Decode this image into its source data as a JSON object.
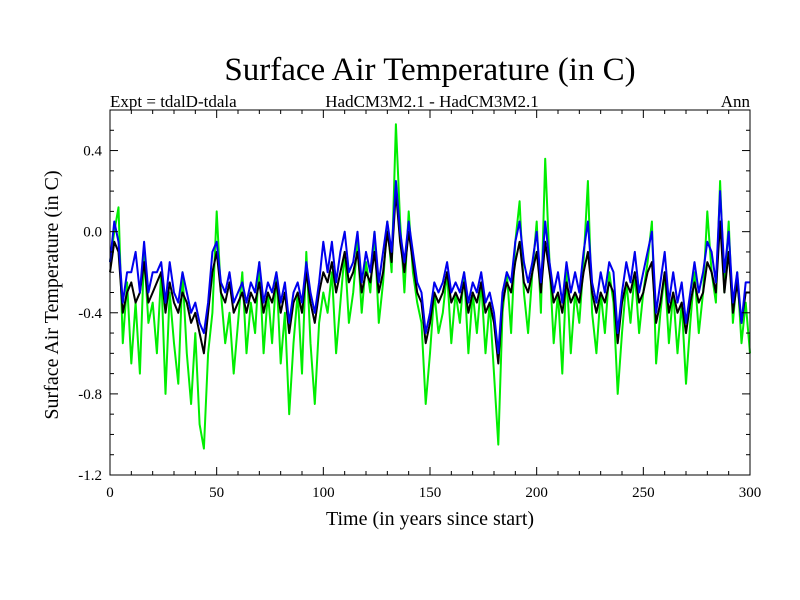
{
  "chart_data": {
    "type": "line",
    "title": "Surface Air Temperature (in C)",
    "subtitle_left": "Expt = tdalD-tdala",
    "subtitle_center": "HadCM3M2.1 - HadCM3M2.1",
    "subtitle_right": "Ann",
    "xlabel": "Time (in years since start)",
    "ylabel": "Surface Air Temperature (in C)",
    "xlim": [
      0,
      300
    ],
    "ylim": [
      -1.2,
      0.6
    ],
    "xticks": [
      0,
      50,
      100,
      150,
      200,
      250,
      300
    ],
    "xtick_labels": [
      "0",
      "50",
      "100",
      "150",
      "200",
      "250",
      "300"
    ],
    "yticks": [
      -1.2,
      -0.8,
      -0.4,
      0.0,
      0.4
    ],
    "ytick_labels": [
      "-1.2",
      "-0.8",
      "-0.4",
      "0.0",
      "0.4"
    ],
    "grid": false,
    "series": [
      {
        "name": "green",
        "color": "#00ee00",
        "x": [
          0,
          2,
          4,
          6,
          8,
          10,
          12,
          14,
          16,
          18,
          20,
          22,
          24,
          26,
          28,
          30,
          32,
          34,
          36,
          38,
          40,
          42,
          44,
          46,
          48,
          50,
          52,
          54,
          56,
          58,
          60,
          62,
          64,
          66,
          68,
          70,
          72,
          74,
          76,
          78,
          80,
          82,
          84,
          86,
          88,
          90,
          92,
          94,
          96,
          98,
          100,
          102,
          104,
          106,
          108,
          110,
          112,
          114,
          116,
          118,
          120,
          122,
          124,
          126,
          128,
          130,
          132,
          134,
          136,
          138,
          140,
          142,
          144,
          146,
          148,
          150,
          152,
          154,
          156,
          158,
          160,
          162,
          164,
          166,
          168,
          170,
          172,
          174,
          176,
          178,
          180,
          182,
          184,
          186,
          188,
          190,
          192,
          194,
          196,
          198,
          200,
          202,
          204,
          206,
          208,
          210,
          212,
          214,
          216,
          218,
          220,
          222,
          224,
          226,
          228,
          230,
          232,
          234,
          236,
          238,
          240,
          242,
          244,
          246,
          248,
          250,
          252,
          254,
          256,
          258,
          260,
          262,
          264,
          266,
          268,
          270,
          272,
          274,
          276,
          278,
          280,
          282,
          284,
          286,
          288,
          290,
          292,
          294,
          296,
          298,
          300
        ],
        "values": [
          -0.15,
          0.0,
          0.12,
          -0.55,
          -0.25,
          -0.65,
          -0.35,
          -0.7,
          -0.1,
          -0.45,
          -0.35,
          -0.6,
          -0.2,
          -0.8,
          -0.3,
          -0.55,
          -0.75,
          -0.2,
          -0.6,
          -0.85,
          -0.5,
          -0.95,
          -1.07,
          -0.6,
          -0.4,
          0.1,
          -0.3,
          -0.55,
          -0.4,
          -0.7,
          -0.45,
          -0.2,
          -0.6,
          -0.35,
          -0.5,
          -0.15,
          -0.6,
          -0.3,
          -0.55,
          -0.2,
          -0.65,
          -0.4,
          -0.9,
          -0.55,
          -0.3,
          -0.7,
          -0.1,
          -0.55,
          -0.85,
          -0.45,
          -0.3,
          -0.4,
          -0.2,
          -0.6,
          -0.35,
          -0.1,
          -0.45,
          -0.3,
          -0.05,
          -0.4,
          -0.15,
          -0.3,
          0.0,
          -0.45,
          -0.25,
          0.05,
          -0.2,
          0.53,
          0.05,
          -0.3,
          0.1,
          -0.2,
          -0.35,
          -0.45,
          -0.85,
          -0.6,
          -0.3,
          -0.5,
          -0.4,
          -0.2,
          -0.55,
          -0.3,
          -0.45,
          -0.2,
          -0.6,
          -0.3,
          -0.5,
          -0.25,
          -0.6,
          -0.35,
          -0.7,
          -1.05,
          -0.4,
          -0.2,
          -0.5,
          -0.05,
          0.15,
          -0.3,
          -0.5,
          -0.2,
          0.05,
          -0.4,
          0.36,
          -0.15,
          -0.55,
          -0.3,
          -0.7,
          -0.2,
          -0.6,
          -0.3,
          -0.45,
          -0.15,
          0.25,
          -0.4,
          -0.6,
          -0.3,
          -0.5,
          -0.2,
          -0.35,
          -0.8,
          -0.5,
          -0.25,
          -0.45,
          -0.2,
          -0.5,
          -0.3,
          -0.15,
          0.05,
          -0.65,
          -0.4,
          -0.2,
          -0.55,
          -0.3,
          -0.6,
          -0.35,
          -0.75,
          -0.45,
          -0.2,
          -0.5,
          -0.3,
          0.1,
          -0.2,
          -0.35,
          0.25,
          -0.3,
          0.05,
          -0.45,
          -0.2,
          -0.55,
          -0.35,
          -0.6
        ]
      },
      {
        "name": "black",
        "color": "#000000",
        "x": [
          0,
          2,
          4,
          6,
          8,
          10,
          12,
          14,
          16,
          18,
          20,
          22,
          24,
          26,
          28,
          30,
          32,
          34,
          36,
          38,
          40,
          42,
          44,
          46,
          48,
          50,
          52,
          54,
          56,
          58,
          60,
          62,
          64,
          66,
          68,
          70,
          72,
          74,
          76,
          78,
          80,
          82,
          84,
          86,
          88,
          90,
          92,
          94,
          96,
          98,
          100,
          102,
          104,
          106,
          108,
          110,
          112,
          114,
          116,
          118,
          120,
          122,
          124,
          126,
          128,
          130,
          132,
          134,
          136,
          138,
          140,
          142,
          144,
          146,
          148,
          150,
          152,
          154,
          156,
          158,
          160,
          162,
          164,
          166,
          168,
          170,
          172,
          174,
          176,
          178,
          180,
          182,
          184,
          186,
          188,
          190,
          192,
          194,
          196,
          198,
          200,
          202,
          204,
          206,
          208,
          210,
          212,
          214,
          216,
          218,
          220,
          222,
          224,
          226,
          228,
          230,
          232,
          234,
          236,
          238,
          240,
          242,
          244,
          246,
          248,
          250,
          252,
          254,
          256,
          258,
          260,
          262,
          264,
          266,
          268,
          270,
          272,
          274,
          276,
          278,
          280,
          282,
          284,
          286,
          288,
          290,
          292,
          294,
          296,
          298,
          300
        ],
        "values": [
          -0.2,
          -0.05,
          -0.1,
          -0.4,
          -0.3,
          -0.25,
          -0.35,
          -0.3,
          -0.15,
          -0.35,
          -0.3,
          -0.25,
          -0.2,
          -0.4,
          -0.25,
          -0.35,
          -0.4,
          -0.3,
          -0.35,
          -0.45,
          -0.4,
          -0.5,
          -0.6,
          -0.4,
          -0.2,
          -0.1,
          -0.3,
          -0.35,
          -0.25,
          -0.4,
          -0.35,
          -0.3,
          -0.4,
          -0.3,
          -0.35,
          -0.25,
          -0.4,
          -0.3,
          -0.35,
          -0.25,
          -0.4,
          -0.3,
          -0.5,
          -0.35,
          -0.3,
          -0.4,
          -0.2,
          -0.35,
          -0.45,
          -0.3,
          -0.2,
          -0.25,
          -0.15,
          -0.3,
          -0.2,
          -0.1,
          -0.25,
          -0.2,
          -0.1,
          -0.3,
          -0.2,
          -0.25,
          -0.1,
          -0.3,
          -0.2,
          0.0,
          -0.15,
          0.2,
          -0.05,
          -0.2,
          0.0,
          -0.15,
          -0.3,
          -0.35,
          -0.55,
          -0.45,
          -0.3,
          -0.35,
          -0.3,
          -0.2,
          -0.35,
          -0.3,
          -0.35,
          -0.25,
          -0.4,
          -0.3,
          -0.35,
          -0.25,
          -0.4,
          -0.35,
          -0.45,
          -0.65,
          -0.35,
          -0.25,
          -0.3,
          -0.15,
          -0.05,
          -0.25,
          -0.3,
          -0.2,
          -0.1,
          -0.3,
          -0.05,
          -0.2,
          -0.35,
          -0.3,
          -0.4,
          -0.25,
          -0.35,
          -0.3,
          -0.35,
          -0.2,
          -0.1,
          -0.3,
          -0.4,
          -0.3,
          -0.35,
          -0.25,
          -0.3,
          -0.55,
          -0.35,
          -0.25,
          -0.3,
          -0.2,
          -0.35,
          -0.3,
          -0.2,
          -0.15,
          -0.45,
          -0.35,
          -0.2,
          -0.4,
          -0.3,
          -0.4,
          -0.35,
          -0.5,
          -0.35,
          -0.25,
          -0.35,
          -0.3,
          -0.15,
          -0.2,
          -0.3,
          0.05,
          -0.3,
          -0.1,
          -0.4,
          -0.25,
          -0.45,
          -0.3,
          -0.3
        ]
      },
      {
        "name": "blue",
        "color": "#0000ee",
        "x": [
          0,
          2,
          4,
          6,
          8,
          10,
          12,
          14,
          16,
          18,
          20,
          22,
          24,
          26,
          28,
          30,
          32,
          34,
          36,
          38,
          40,
          42,
          44,
          46,
          48,
          50,
          52,
          54,
          56,
          58,
          60,
          62,
          64,
          66,
          68,
          70,
          72,
          74,
          76,
          78,
          80,
          82,
          84,
          86,
          88,
          90,
          92,
          94,
          96,
          98,
          100,
          102,
          104,
          106,
          108,
          110,
          112,
          114,
          116,
          118,
          120,
          122,
          124,
          126,
          128,
          130,
          132,
          134,
          136,
          138,
          140,
          142,
          144,
          146,
          148,
          150,
          152,
          154,
          156,
          158,
          160,
          162,
          164,
          166,
          168,
          170,
          172,
          174,
          176,
          178,
          180,
          182,
          184,
          186,
          188,
          190,
          192,
          194,
          196,
          198,
          200,
          202,
          204,
          206,
          208,
          210,
          212,
          214,
          216,
          218,
          220,
          222,
          224,
          226,
          228,
          230,
          232,
          234,
          236,
          238,
          240,
          242,
          244,
          246,
          248,
          250,
          252,
          254,
          256,
          258,
          260,
          262,
          264,
          266,
          268,
          270,
          272,
          274,
          276,
          278,
          280,
          282,
          284,
          286,
          288,
          290,
          292,
          294,
          296,
          298,
          300
        ],
        "values": [
          -0.15,
          0.05,
          -0.05,
          -0.35,
          -0.2,
          -0.2,
          -0.1,
          -0.3,
          -0.05,
          -0.3,
          -0.2,
          -0.2,
          -0.15,
          -0.35,
          -0.15,
          -0.3,
          -0.35,
          -0.2,
          -0.3,
          -0.4,
          -0.35,
          -0.45,
          -0.5,
          -0.35,
          -0.1,
          -0.05,
          -0.25,
          -0.3,
          -0.2,
          -0.35,
          -0.3,
          -0.25,
          -0.35,
          -0.25,
          -0.3,
          -0.15,
          -0.35,
          -0.25,
          -0.3,
          -0.2,
          -0.35,
          -0.25,
          -0.45,
          -0.3,
          -0.25,
          -0.35,
          -0.15,
          -0.3,
          -0.4,
          -0.25,
          -0.05,
          -0.2,
          -0.05,
          -0.25,
          -0.1,
          0.0,
          -0.2,
          -0.15,
          0.0,
          -0.25,
          -0.1,
          -0.2,
          0.0,
          -0.25,
          -0.1,
          0.05,
          -0.1,
          0.25,
          0.0,
          -0.15,
          0.05,
          -0.1,
          -0.25,
          -0.3,
          -0.5,
          -0.4,
          -0.25,
          -0.3,
          -0.25,
          -0.15,
          -0.3,
          -0.25,
          -0.3,
          -0.2,
          -0.35,
          -0.25,
          -0.3,
          -0.2,
          -0.35,
          -0.3,
          -0.4,
          -0.6,
          -0.3,
          -0.2,
          -0.25,
          -0.05,
          0.05,
          -0.15,
          -0.25,
          -0.15,
          0.0,
          -0.25,
          0.05,
          -0.15,
          -0.3,
          -0.2,
          -0.35,
          -0.15,
          -0.3,
          -0.2,
          -0.3,
          -0.1,
          0.05,
          -0.25,
          -0.35,
          -0.2,
          -0.3,
          -0.15,
          -0.2,
          -0.5,
          -0.3,
          -0.15,
          -0.25,
          -0.1,
          -0.3,
          -0.2,
          -0.1,
          0.0,
          -0.4,
          -0.25,
          -0.1,
          -0.35,
          -0.2,
          -0.35,
          -0.25,
          -0.45,
          -0.3,
          -0.15,
          -0.3,
          -0.2,
          -0.05,
          -0.1,
          -0.25,
          0.2,
          -0.2,
          0.0,
          -0.35,
          -0.2,
          -0.45,
          -0.25,
          -0.25
        ]
      }
    ]
  }
}
